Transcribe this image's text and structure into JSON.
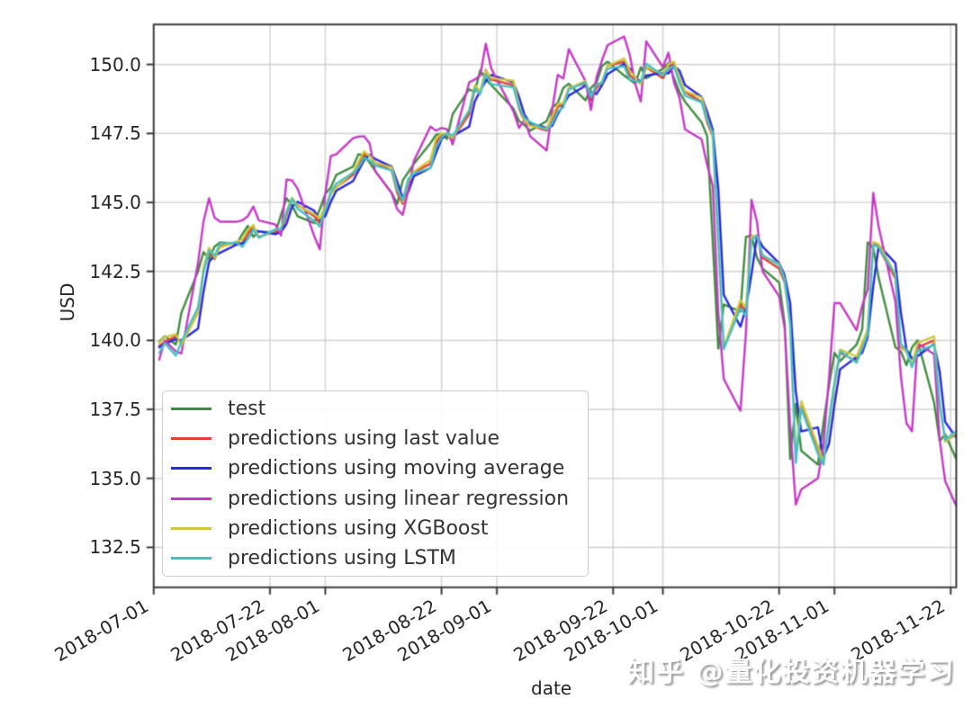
{
  "chart_data": {
    "type": "line",
    "title": "",
    "xlabel": "date",
    "ylabel": "USD",
    "grid": true,
    "legend_position": "lower left inside axes",
    "x_ticks": [
      "2018-07-01",
      "2018-07-22",
      "2018-08-01",
      "2018-08-22",
      "2018-09-01",
      "2018-09-22",
      "2018-10-01",
      "2018-10-22",
      "2018-11-01",
      "2018-11-22"
    ],
    "y_ticks": [
      132.5,
      135.0,
      137.5,
      140.0,
      142.5,
      145.0,
      147.5,
      150.0
    ],
    "xlim": [
      "2018-07-01",
      "2018-11-23"
    ],
    "ylim": [
      131.05,
      151.45
    ],
    "dates": [
      "2018-07-02",
      "2018-07-03",
      "2018-07-05",
      "2018-07-06",
      "2018-07-09",
      "2018-07-10",
      "2018-07-11",
      "2018-07-12",
      "2018-07-13",
      "2018-07-16",
      "2018-07-17",
      "2018-07-18",
      "2018-07-19",
      "2018-07-20",
      "2018-07-23",
      "2018-07-24",
      "2018-07-25",
      "2018-07-26",
      "2018-07-27",
      "2018-07-30",
      "2018-07-31",
      "2018-08-01",
      "2018-08-02",
      "2018-08-03",
      "2018-08-06",
      "2018-08-07",
      "2018-08-08",
      "2018-08-09",
      "2018-08-10",
      "2018-08-13",
      "2018-08-14",
      "2018-08-15",
      "2018-08-16",
      "2018-08-17",
      "2018-08-20",
      "2018-08-21",
      "2018-08-22",
      "2018-08-23",
      "2018-08-24",
      "2018-08-27",
      "2018-08-28",
      "2018-08-29",
      "2018-08-30",
      "2018-08-31",
      "2018-09-04",
      "2018-09-05",
      "2018-09-06",
      "2018-09-07",
      "2018-09-10",
      "2018-09-11",
      "2018-09-12",
      "2018-09-13",
      "2018-09-14",
      "2018-09-17",
      "2018-09-18",
      "2018-09-19",
      "2018-09-20",
      "2018-09-21",
      "2018-09-24",
      "2018-09-25",
      "2018-09-26",
      "2018-09-27",
      "2018-09-28",
      "2018-10-01",
      "2018-10-02",
      "2018-10-03",
      "2018-10-04",
      "2018-10-05",
      "2018-10-08",
      "2018-10-09",
      "2018-10-10",
      "2018-10-11",
      "2018-10-12",
      "2018-10-15",
      "2018-10-16",
      "2018-10-17",
      "2018-10-18",
      "2018-10-19",
      "2018-10-22",
      "2018-10-23",
      "2018-10-24",
      "2018-10-25",
      "2018-10-26",
      "2018-10-29",
      "2018-10-30",
      "2018-10-31",
      "2018-11-01",
      "2018-11-02",
      "2018-11-05",
      "2018-11-06",
      "2018-11-07",
      "2018-11-08",
      "2018-11-09",
      "2018-11-12",
      "2018-11-13",
      "2018-11-14",
      "2018-11-15",
      "2018-11-16",
      "2018-11-19",
      "2018-11-20",
      "2018-11-21",
      "2018-11-23"
    ],
    "series": [
      {
        "name": "test",
        "color": "#3f8c3f",
        "values": [
          139.95,
          140.15,
          139.85,
          141.0,
          142.5,
          143.2,
          142.95,
          143.4,
          143.55,
          143.5,
          143.85,
          144.15,
          143.75,
          143.95,
          143.9,
          144.55,
          145.15,
          144.9,
          144.5,
          144.25,
          144.75,
          145.3,
          145.55,
          146.0,
          146.3,
          146.75,
          146.7,
          146.45,
          146.15,
          145.35,
          144.95,
          145.8,
          146.1,
          146.4,
          147.15,
          147.45,
          147.5,
          147.3,
          148.2,
          149.1,
          149.0,
          149.8,
          149.45,
          149.25,
          148.4,
          147.95,
          147.8,
          147.6,
          147.95,
          148.45,
          148.6,
          149.15,
          149.3,
          148.7,
          149.15,
          149.35,
          149.95,
          150.1,
          149.6,
          149.45,
          149.3,
          149.9,
          149.5,
          149.85,
          150.05,
          149.5,
          149.0,
          148.65,
          147.9,
          147.4,
          143.6,
          139.7,
          141.3,
          141.05,
          143.75,
          143.8,
          143.0,
          142.6,
          142.1,
          140.6,
          135.7,
          137.7,
          136.0,
          135.5,
          137.0,
          138.35,
          139.55,
          139.25,
          139.85,
          140.4,
          143.55,
          143.35,
          142.25,
          139.75,
          139.6,
          139.1,
          139.75,
          140.0,
          137.75,
          136.35,
          136.6,
          135.7
        ]
      },
      {
        "name": "predictions using last value",
        "color": "#e0402e",
        "values": [
          139.8,
          139.95,
          140.15,
          139.85,
          141.0,
          142.5,
          143.2,
          142.95,
          143.4,
          143.55,
          143.5,
          143.85,
          144.15,
          143.75,
          143.95,
          143.9,
          144.55,
          145.15,
          144.9,
          144.5,
          144.25,
          144.75,
          145.3,
          145.55,
          146.0,
          146.3,
          146.75,
          146.7,
          146.45,
          146.15,
          145.35,
          144.95,
          145.8,
          146.1,
          146.4,
          147.15,
          147.45,
          147.5,
          147.3,
          148.2,
          149.1,
          149.0,
          149.8,
          149.45,
          149.25,
          148.4,
          147.95,
          147.8,
          147.6,
          147.95,
          148.45,
          148.6,
          149.15,
          149.3,
          148.7,
          149.15,
          149.35,
          149.95,
          150.1,
          149.6,
          149.45,
          149.3,
          149.9,
          149.5,
          149.85,
          150.05,
          149.5,
          149.0,
          148.65,
          147.9,
          147.4,
          143.6,
          139.7,
          141.3,
          141.05,
          143.75,
          143.8,
          143.0,
          142.6,
          142.1,
          140.6,
          135.7,
          137.7,
          136.0,
          135.5,
          137.0,
          138.35,
          139.55,
          139.25,
          139.85,
          140.4,
          143.55,
          143.35,
          142.25,
          139.75,
          139.6,
          139.1,
          139.75,
          140.0,
          137.75,
          136.35,
          136.6
        ]
      },
      {
        "name": "predictions using moving average",
        "color": "#2727dd",
        "values": [
          139.75,
          139.875,
          140.05,
          140.0,
          140.425,
          141.75,
          142.85,
          143.075,
          143.175,
          143.475,
          143.525,
          143.675,
          144.0,
          143.95,
          143.85,
          143.925,
          144.225,
          144.85,
          145.025,
          144.7,
          144.375,
          144.5,
          145.025,
          145.425,
          145.775,
          146.15,
          146.525,
          146.725,
          146.575,
          146.3,
          145.75,
          145.15,
          145.375,
          145.95,
          146.25,
          146.775,
          147.3,
          147.475,
          147.4,
          147.75,
          148.65,
          149.05,
          149.4,
          149.625,
          149.35,
          148.825,
          148.175,
          147.875,
          147.7,
          147.775,
          148.2,
          148.525,
          148.875,
          149.225,
          149.0,
          148.925,
          149.25,
          149.65,
          150.025,
          149.85,
          149.525,
          149.375,
          149.6,
          149.7,
          149.675,
          149.95,
          149.775,
          149.25,
          148.825,
          148.275,
          147.65,
          145.5,
          141.65,
          140.5,
          141.175,
          142.4,
          143.775,
          143.4,
          142.8,
          142.35,
          141.35,
          138.15,
          136.7,
          136.85,
          135.75,
          136.25,
          137.675,
          138.95,
          139.4,
          139.55,
          140.125,
          141.975,
          143.45,
          142.8,
          141.0,
          139.675,
          139.35,
          139.425,
          139.875,
          138.875,
          137.05,
          136.475
        ]
      },
      {
        "name": "predictions using linear regression",
        "color": "#c438c4",
        "values": [
          139.3,
          140.0,
          139.6,
          139.527,
          142.8,
          144.3,
          145.15,
          144.45,
          144.3,
          144.3,
          144.35,
          144.5,
          144.85,
          144.35,
          144.2,
          143.805,
          145.83,
          145.8,
          145.5,
          143.785,
          143.303,
          145.295,
          146.683,
          146.745,
          147.327,
          147.388,
          147.4,
          147.145,
          146.132,
          145.333,
          144.75,
          144.55,
          145.45,
          146.5,
          147.75,
          147.6,
          147.7,
          147.65,
          147.1,
          149.35,
          149.45,
          149.6,
          150.75,
          149.85,
          148.3,
          147.7,
          148.0,
          147.4,
          146.882,
          148.367,
          149.625,
          149.493,
          150.555,
          149.4,
          148.35,
          149.533,
          150.15,
          150.7,
          151.015,
          150.35,
          149.3,
          148.655,
          150.838,
          149.9,
          150.425,
          149.35,
          148.792,
          147.645,
          147.288,
          146.35,
          145.618,
          141.0,
          138.6,
          137.45,
          140.26,
          145.1,
          144.3,
          142.5,
          141.6,
          140.43,
          136.9,
          134.05,
          134.6,
          135.0,
          136.2,
          138.635,
          141.35,
          141.35,
          140.367,
          141.26,
          141.85,
          145.35,
          144.1,
          141.398,
          138.7,
          137.0,
          136.7,
          139.9,
          139.5,
          136.4,
          134.9,
          134.0
        ]
      },
      {
        "name": "predictions using XGBoost",
        "color": "#cfc63d",
        "values": [
          139.918,
          140.117,
          140.224,
          139.825,
          141.015,
          142.636,
          143.36,
          143.003,
          143.37,
          143.584,
          143.65,
          143.999,
          144.182,
          143.721,
          144.005,
          144.061,
          144.684,
          145.163,
          144.876,
          144.577,
          144.418,
          144.866,
          145.297,
          145.535,
          146.098,
          146.47,
          146.845,
          146.684,
          146.448,
          146.268,
          145.517,
          145.024,
          145.775,
          146.115,
          146.536,
          147.31,
          147.502,
          147.47,
          147.334,
          148.35,
          149.249,
          149.032,
          149.771,
          149.505,
          149.411,
          148.534,
          147.963,
          147.776,
          147.677,
          148.118,
          148.566,
          148.596,
          149.135,
          149.398,
          148.87,
          149.245,
          149.334,
          149.948,
          150.218,
          149.767,
          149.524,
          149.275,
          149.915,
          149.636,
          150.01,
          150.102,
          149.47,
          149.034,
          148.8,
          148.049,
          147.432,
          143.571,
          139.755,
          141.461,
          141.184,
          143.763,
          143.776,
          143.077,
          142.768,
          142.216,
          140.596,
          135.685,
          137.798,
          136.17,
          135.595,
          136.984,
          138.348,
          139.668,
          139.417,
          139.924,
          140.375,
          143.565,
          143.486,
          142.41,
          139.802,
          139.57,
          139.134,
          139.901,
          140.149,
          137.782,
          136.321,
          136.655
        ]
      },
      {
        "name": "predictions using LSTM",
        "color": "#45c1c1",
        "values": [
          139.55,
          139.9,
          139.45,
          139.95,
          141.2,
          142.453,
          143.267,
          143.078,
          143.5,
          143.549,
          143.386,
          143.681,
          144.016,
          143.72,
          144.03,
          144.03,
          144.638,
          145.131,
          144.773,
          144.33,
          144.128,
          144.738,
          145.393,
          145.68,
          146.076,
          146.264,
          146.612,
          146.531,
          146.341,
          146.155,
          145.453,
          145.077,
          145.861,
          146.046,
          146.252,
          146.985,
          147.356,
          147.522,
          147.413,
          148.323,
          149.146,
          148.93,
          149.644,
          149.29,
          149.172,
          148.439,
          148.07,
          147.916,
          147.63,
          147.864,
          148.287,
          148.448,
          149.088,
          149.354,
          148.825,
          149.258,
          149.363,
          149.848,
          149.933,
          149.457,
          149.405,
          149.369,
          150.029,
          149.598,
          149.846,
          149.934,
          149.33,
          148.867,
          148.623,
          147.982,
          147.53,
          143.687,
          139.679,
          141.171,
          140.88,
          143.63,
          143.79,
          143.094,
          142.729,
          142.174,
          140.561,
          135.56,
          137.532,
          135.893,
          135.508,
          137.105,
          138.477,
          139.609,
          139.194,
          139.7,
          140.236,
          143.458,
          143.375,
          142.364,
          139.872,
          139.644,
          139.027,
          139.592,
          139.841,
          137.674,
          136.391,
          136.721
        ]
      }
    ]
  },
  "watermark": {
    "text": "知乎 @量化投资机器学习"
  }
}
